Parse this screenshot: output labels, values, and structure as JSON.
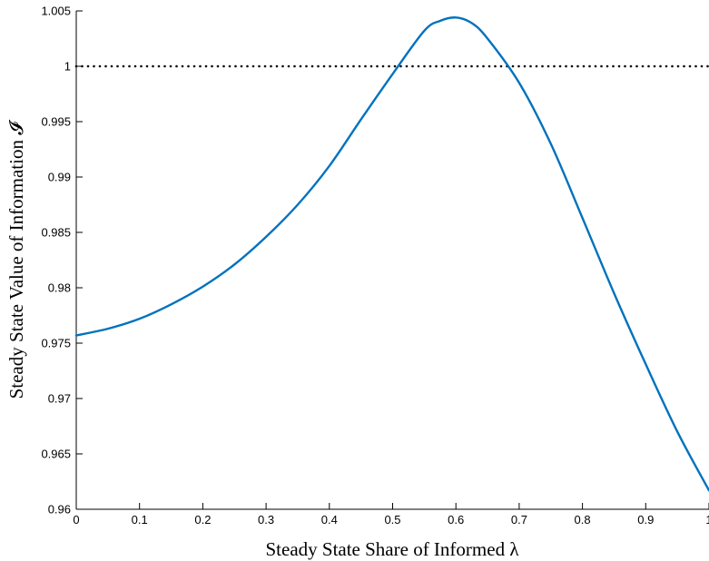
{
  "chart_data": {
    "type": "line",
    "title": "",
    "xlabel": "Steady State Share of Informed λ",
    "ylabel": "Steady State Value of Information 𝓘",
    "xlim": [
      0,
      1
    ],
    "ylim": [
      0.96,
      1.005
    ],
    "x_ticks": [
      0,
      0.1,
      0.2,
      0.3,
      0.4,
      0.5,
      0.6,
      0.7,
      0.8,
      0.9,
      1
    ],
    "x_tick_labels": [
      "0",
      "0.1",
      "0.2",
      "0.3",
      "0.4",
      "0.5",
      "0.6",
      "0.7",
      "0.8",
      "0.9",
      "1"
    ],
    "y_ticks": [
      0.96,
      0.965,
      0.97,
      0.975,
      0.98,
      0.985,
      0.99,
      0.995,
      1,
      1.005
    ],
    "y_tick_labels": [
      "0.96",
      "0.965",
      "0.97",
      "0.975",
      "0.98",
      "0.985",
      "0.99",
      "0.995",
      "1",
      "1.005"
    ],
    "grid": false,
    "series": [
      {
        "color": "#0072BD",
        "x": [
          0,
          0.05,
          0.1,
          0.15,
          0.2,
          0.25,
          0.3,
          0.35,
          0.4,
          0.45,
          0.5,
          0.55,
          0.575,
          0.6,
          0.625,
          0.65,
          0.7,
          0.75,
          0.8,
          0.85,
          0.9,
          0.95,
          1.0
        ],
        "y": [
          0.9757,
          0.9763,
          0.9772,
          0.9785,
          0.9801,
          0.9821,
          0.9846,
          0.9875,
          0.991,
          0.9952,
          0.9993,
          1.0032,
          1.0041,
          1.0044,
          1.0039,
          1.0025,
          0.9985,
          0.993,
          0.9863,
          0.9795,
          0.9731,
          0.967,
          0.9617
        ]
      }
    ],
    "reference_lines": [
      {
        "y": 1,
        "style": "dotted",
        "color": "#000000"
      }
    ]
  }
}
